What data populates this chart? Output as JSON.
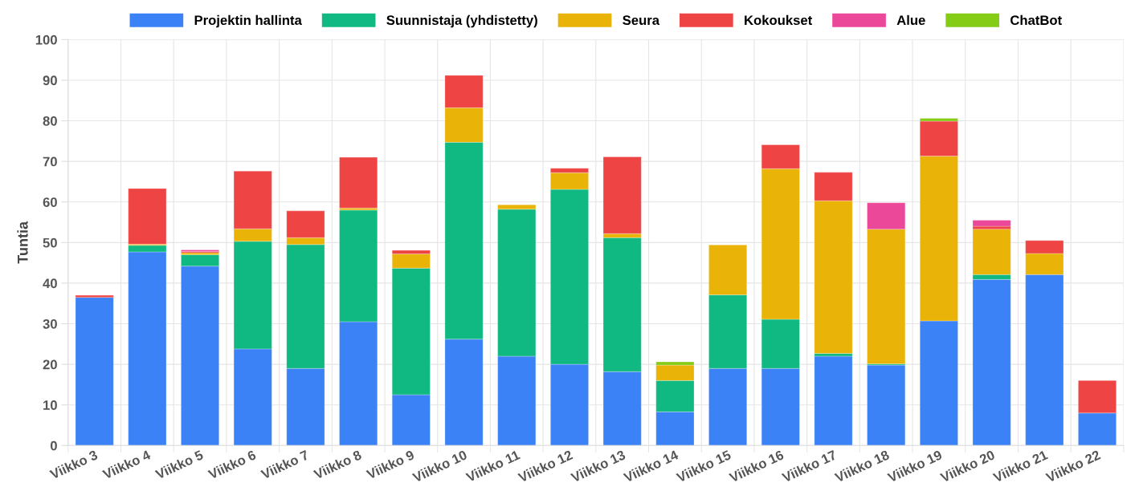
{
  "chart_data": {
    "type": "bar",
    "stacked": true,
    "ylabel": "Tuntia",
    "ylim": [
      0,
      100
    ],
    "yticks": [
      0,
      10,
      20,
      30,
      40,
      50,
      60,
      70,
      80,
      90,
      100
    ],
    "grid": true,
    "legend": "top",
    "categories": [
      "Viikko 3",
      "Viikko 4",
      "Viikko 5",
      "Viikko 6",
      "Viikko 7",
      "Viikko 8",
      "Viikko 9",
      "Viikko 10",
      "Viikko 11",
      "Viikko 12",
      "Viikko 13",
      "Viikko 14",
      "Viikko 15",
      "Viikko 16",
      "Viikko 17",
      "Viikko 18",
      "Viikko 19",
      "Viikko 20",
      "Viikko 21",
      "Viikko 22"
    ],
    "series": [
      {
        "name": "Projektin hallinta",
        "color": "#3b82f6",
        "values": [
          36.5,
          47.7,
          44.2,
          23.8,
          19,
          30.5,
          12.5,
          26.2,
          22,
          20,
          18.2,
          8.3,
          19,
          19,
          22,
          19.8,
          30.7,
          40.9,
          42.1,
          8
        ]
      },
      {
        "name": "Suunnistaja (yhdistetty)",
        "color": "#10b981",
        "values": [
          0,
          1.6,
          2.8,
          26.5,
          30.5,
          27.5,
          31.2,
          48.5,
          36.2,
          43.1,
          33,
          7.7,
          18.1,
          12.1,
          0.7,
          0.3,
          0,
          1.2,
          0,
          0
        ]
      },
      {
        "name": "Seura",
        "color": "#eab308",
        "values": [
          0,
          0.3,
          0.5,
          3.1,
          1.7,
          0.5,
          3.5,
          8.5,
          1.1,
          4.1,
          1,
          3.8,
          12.3,
          37.1,
          37.6,
          33.2,
          40.6,
          11.2,
          5.2,
          0
        ]
      },
      {
        "name": "Kokoukset",
        "color": "#ef4444",
        "values": [
          0.5,
          13.7,
          0.3,
          14.2,
          6.6,
          12.5,
          0.9,
          8,
          0,
          1.1,
          18.9,
          0,
          0,
          5.9,
          7,
          0,
          8.6,
          0.7,
          3.2,
          8
        ]
      },
      {
        "name": "Alue",
        "color": "#ec4899",
        "values": [
          0,
          0,
          0.4,
          0,
          0,
          0,
          0,
          0,
          0,
          0,
          0,
          0,
          0,
          0,
          0,
          6.5,
          0,
          1.5,
          0,
          0
        ]
      },
      {
        "name": "ChatBot",
        "color": "#84cc16",
        "values": [
          0,
          0,
          0,
          0,
          0,
          0,
          0,
          0,
          0,
          0,
          0,
          0.8,
          0,
          0,
          0,
          0,
          0.7,
          0,
          0,
          0
        ]
      }
    ]
  }
}
